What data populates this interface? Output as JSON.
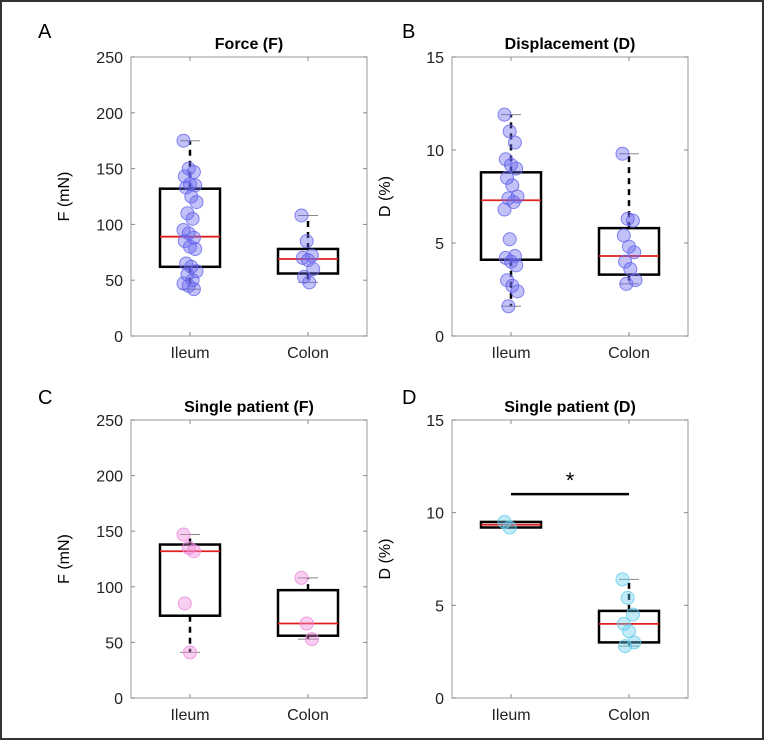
{
  "chart_data": [
    {
      "panel_label": "A",
      "type": "box",
      "title": "Force (F)",
      "xlabel": "",
      "ylabel": "F (mN)",
      "ylim": [
        0,
        250
      ],
      "yticks": [
        0,
        50,
        100,
        150,
        200,
        250
      ],
      "categories": [
        "Ileum",
        "Colon"
      ],
      "point_color": "#6666ee",
      "boxes": [
        {
          "category": "Ileum",
          "whisker_low": 42,
          "q1": 62,
          "median": 89,
          "q3": 132,
          "whisker_high": 175,
          "points": [
            175,
            150,
            147,
            143,
            136,
            135,
            133,
            125,
            120,
            110,
            105,
            95,
            92,
            88,
            85,
            80,
            78,
            65,
            62,
            58,
            55,
            50,
            47,
            45,
            42
          ]
        },
        {
          "category": "Colon",
          "whisker_low": 48,
          "q1": 56,
          "median": 69,
          "q3": 78,
          "whisker_high": 108,
          "points": [
            108,
            85,
            72,
            70,
            68,
            60,
            53,
            48
          ]
        }
      ]
    },
    {
      "panel_label": "B",
      "type": "box",
      "title": "Displacement (D)",
      "xlabel": "",
      "ylabel": "D (%)",
      "ylim": [
        0,
        15
      ],
      "yticks": [
        0,
        5,
        10,
        15
      ],
      "categories": [
        "Ileum",
        "Colon"
      ],
      "point_color": "#6666ee",
      "boxes": [
        {
          "category": "Ileum",
          "whisker_low": 1.6,
          "q1": 4.1,
          "median": 7.3,
          "q3": 8.8,
          "whisker_high": 11.9,
          "points": [
            11.9,
            11.0,
            10.4,
            9.5,
            9.2,
            9.0,
            8.5,
            8.1,
            7.5,
            7.4,
            7.2,
            6.8,
            5.2,
            4.3,
            4.2,
            4.0,
            3.8,
            3.0,
            2.7,
            2.4,
            1.6
          ]
        },
        {
          "category": "Colon",
          "whisker_low": 2.8,
          "q1": 3.3,
          "median": 4.3,
          "q3": 5.8,
          "whisker_high": 9.8,
          "points": [
            9.8,
            6.3,
            6.2,
            5.4,
            4.8,
            4.5,
            4.0,
            3.6,
            3.0,
            2.8
          ]
        }
      ]
    },
    {
      "panel_label": "C",
      "type": "box",
      "title": "Single patient (F)",
      "xlabel": "",
      "ylabel": "F (mN)",
      "ylim": [
        0,
        250
      ],
      "yticks": [
        0,
        50,
        100,
        150,
        200,
        250
      ],
      "categories": [
        "Ileum",
        "Colon"
      ],
      "point_color": "#ee88dd",
      "boxes": [
        {
          "category": "Ileum",
          "whisker_low": 41,
          "q1": 74,
          "median": 132,
          "q3": 138,
          "whisker_high": 147,
          "points": [
            147,
            135,
            132,
            85,
            41
          ]
        },
        {
          "category": "Colon",
          "whisker_low": 53,
          "q1": 56,
          "median": 67,
          "q3": 97,
          "whisker_high": 108,
          "points": [
            108,
            67,
            53
          ]
        }
      ]
    },
    {
      "panel_label": "D",
      "type": "box",
      "title": "Single patient (D)",
      "xlabel": "",
      "ylabel": "D (%)",
      "ylim": [
        0,
        15
      ],
      "yticks": [
        0,
        5,
        10,
        15
      ],
      "categories": [
        "Ileum",
        "Colon"
      ],
      "point_color": "#66ccee",
      "boxes": [
        {
          "category": "Ileum",
          "whisker_low": 9.2,
          "q1": 9.2,
          "median": 9.35,
          "q3": 9.5,
          "whisker_high": 9.5,
          "points": [
            9.5,
            9.2
          ]
        },
        {
          "category": "Colon",
          "whisker_low": 2.8,
          "q1": 3.0,
          "median": 4.0,
          "q3": 4.7,
          "whisker_high": 6.4,
          "points": [
            6.4,
            5.4,
            4.5,
            4.0,
            3.6,
            3.0,
            2.8
          ]
        }
      ],
      "significance": {
        "y": 11,
        "label": "*",
        "between": [
          "Ileum",
          "Colon"
        ]
      }
    }
  ]
}
